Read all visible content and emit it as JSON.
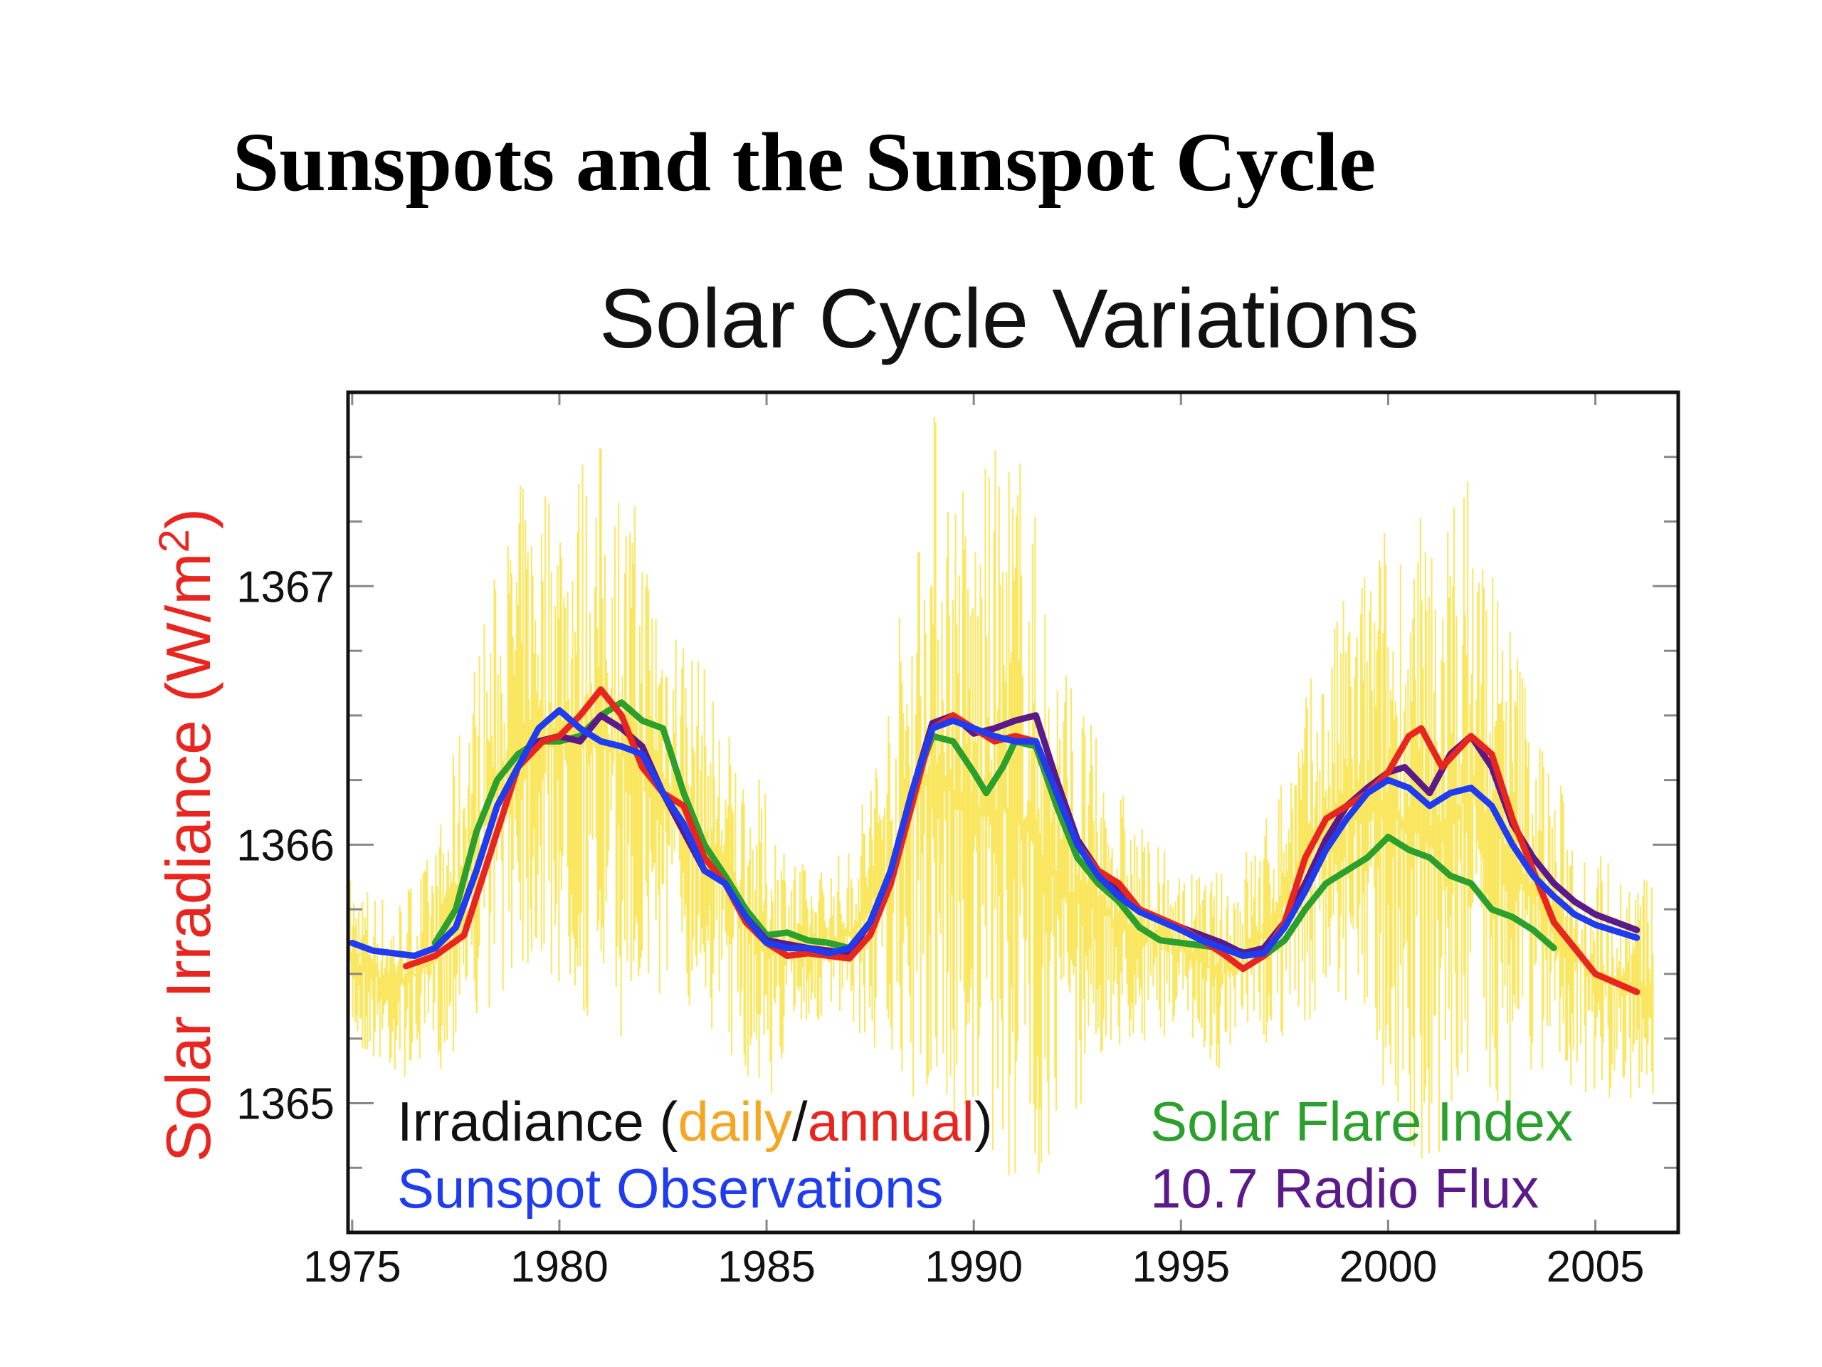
{
  "slide_title": "Sunspots and the Sunspot Cycle",
  "chart_data": {
    "type": "line",
    "title": "Solar Cycle Variations",
    "ylabel": "Solar Irradiance (W/m",
    "ylabel_sup": "2",
    "ylabel_close": ")",
    "xlabel": "",
    "xlim": [
      1974.9,
      2007
    ],
    "ylim": [
      1364.5,
      1367.75
    ],
    "xticks": [
      1975,
      1980,
      1985,
      1990,
      1995,
      2000,
      2005
    ],
    "yticks": [
      1365,
      1366,
      1367
    ],
    "xtick_labels": [
      "1975",
      "1980",
      "1985",
      "1990",
      "1995",
      "2000",
      "2005"
    ],
    "ytick_labels": [
      "1365",
      "1366",
      "1367"
    ],
    "grid": false,
    "legend_placement": "bottom",
    "legend": {
      "irradiance_prefix": "Irradiance (",
      "daily": "daily",
      "slash": "/",
      "annual": "annual",
      "irradiance_suffix": ")",
      "sunspot": "Sunspot Observations",
      "flare": "Solar Flare Index",
      "radio": "10.7 Radio Flux"
    },
    "colors": {
      "daily": "#f8e03a",
      "daily_label": "#f5a623",
      "annual": "#e8261f",
      "sunspot": "#1f3cf0",
      "flare": "#2ca02c",
      "radio": "#5b1a8a",
      "axis": "#111111",
      "tick": "#888888"
    },
    "daily_envelope": [
      [
        1975,
        1365.2,
        1365.9
      ],
      [
        1976,
        1365.1,
        1365.8
      ],
      [
        1977,
        1365.1,
        1366.0
      ],
      [
        1978,
        1365.3,
        1366.8
      ],
      [
        1979,
        1365.5,
        1367.4
      ],
      [
        1980,
        1365.4,
        1367.5
      ],
      [
        1981,
        1365.2,
        1367.6
      ],
      [
        1982,
        1365.3,
        1367.3
      ],
      [
        1983,
        1365.4,
        1366.9
      ],
      [
        1984,
        1365.2,
        1366.5
      ],
      [
        1985,
        1365.0,
        1366.2
      ],
      [
        1986,
        1365.3,
        1365.9
      ],
      [
        1987,
        1365.3,
        1366.0
      ],
      [
        1988,
        1365.1,
        1366.7
      ],
      [
        1989,
        1364.9,
        1367.75
      ],
      [
        1990,
        1364.8,
        1367.4
      ],
      [
        1991,
        1364.6,
        1367.7
      ],
      [
        1992,
        1364.8,
        1366.9
      ],
      [
        1993,
        1365.1,
        1366.4
      ],
      [
        1994,
        1365.2,
        1366.1
      ],
      [
        1995,
        1365.3,
        1365.9
      ],
      [
        1996,
        1365.1,
        1365.9
      ],
      [
        1997,
        1365.2,
        1366.1
      ],
      [
        1998,
        1365.3,
        1366.6
      ],
      [
        1999,
        1365.3,
        1367.0
      ],
      [
        2000,
        1365.0,
        1367.3
      ],
      [
        2001,
        1364.7,
        1367.3
      ],
      [
        2002,
        1364.9,
        1367.5
      ],
      [
        2003,
        1365.0,
        1366.9
      ],
      [
        2004,
        1365.1,
        1366.3
      ],
      [
        2005,
        1365.0,
        1366.0
      ],
      [
        2006,
        1365.0,
        1365.9
      ]
    ],
    "series": [
      {
        "name": "annual",
        "points": [
          [
            1976.3,
            1365.53
          ],
          [
            1977,
            1365.57
          ],
          [
            1977.7,
            1365.65
          ],
          [
            1978.3,
            1365.95
          ],
          [
            1979,
            1366.3
          ],
          [
            1979.6,
            1366.4
          ],
          [
            1980,
            1366.42
          ],
          [
            1980.5,
            1366.5
          ],
          [
            1981,
            1366.6
          ],
          [
            1981.5,
            1366.5
          ],
          [
            1982,
            1366.3
          ],
          [
            1982.5,
            1366.2
          ],
          [
            1983,
            1366.15
          ],
          [
            1983.5,
            1365.95
          ],
          [
            1984,
            1365.85
          ],
          [
            1984.5,
            1365.7
          ],
          [
            1985,
            1365.62
          ],
          [
            1985.5,
            1365.57
          ],
          [
            1986,
            1365.58
          ],
          [
            1986.5,
            1365.57
          ],
          [
            1987,
            1365.56
          ],
          [
            1987.5,
            1365.65
          ],
          [
            1988,
            1365.85
          ],
          [
            1988.5,
            1366.15
          ],
          [
            1989,
            1366.45
          ],
          [
            1989.5,
            1366.5
          ],
          [
            1990,
            1366.45
          ],
          [
            1990.5,
            1366.4
          ],
          [
            1991,
            1366.42
          ],
          [
            1991.5,
            1366.4
          ],
          [
            1992,
            1366.2
          ],
          [
            1992.5,
            1366.0
          ],
          [
            1993,
            1365.9
          ],
          [
            1993.5,
            1365.85
          ],
          [
            1994,
            1365.75
          ],
          [
            1995,
            1365.68
          ],
          [
            1995.5,
            1365.63
          ],
          [
            1996,
            1365.58
          ],
          [
            1996.5,
            1365.52
          ],
          [
            1997,
            1365.57
          ],
          [
            1997.5,
            1365.7
          ],
          [
            1998,
            1365.95
          ],
          [
            1998.5,
            1366.1
          ],
          [
            1999,
            1366.15
          ],
          [
            1999.5,
            1366.2
          ],
          [
            2000,
            1366.28
          ],
          [
            2000.5,
            1366.42
          ],
          [
            2000.8,
            1366.45
          ],
          [
            2001.3,
            1366.3
          ],
          [
            2002,
            1366.42
          ],
          [
            2002.5,
            1366.35
          ],
          [
            2003,
            1366.1
          ],
          [
            2003.5,
            1365.9
          ],
          [
            2004,
            1365.7
          ],
          [
            2004.5,
            1365.6
          ],
          [
            2005,
            1365.5
          ],
          [
            2006,
            1365.43
          ]
        ]
      },
      {
        "name": "Sunspot Observations",
        "points": [
          [
            1975,
            1365.62
          ],
          [
            1975.5,
            1365.59
          ],
          [
            1976,
            1365.58
          ],
          [
            1976.5,
            1365.57
          ],
          [
            1977,
            1365.6
          ],
          [
            1977.5,
            1365.68
          ],
          [
            1978,
            1365.9
          ],
          [
            1978.5,
            1366.15
          ],
          [
            1979,
            1366.3
          ],
          [
            1979.5,
            1366.45
          ],
          [
            1980,
            1366.52
          ],
          [
            1980.5,
            1366.45
          ],
          [
            1981,
            1366.4
          ],
          [
            1981.5,
            1366.38
          ],
          [
            1982,
            1366.35
          ],
          [
            1982.5,
            1366.2
          ],
          [
            1983,
            1366.08
          ],
          [
            1983.5,
            1365.9
          ],
          [
            1984,
            1365.85
          ],
          [
            1984.5,
            1365.72
          ],
          [
            1985,
            1365.62
          ],
          [
            1985.5,
            1365.6
          ],
          [
            1986,
            1365.6
          ],
          [
            1986.5,
            1365.58
          ],
          [
            1987,
            1365.6
          ],
          [
            1987.5,
            1365.7
          ],
          [
            1988,
            1365.9
          ],
          [
            1988.5,
            1366.2
          ],
          [
            1989,
            1366.45
          ],
          [
            1989.5,
            1366.48
          ],
          [
            1990,
            1366.45
          ],
          [
            1990.5,
            1366.42
          ],
          [
            1991,
            1366.4
          ],
          [
            1991.5,
            1366.4
          ],
          [
            1992,
            1366.2
          ],
          [
            1992.5,
            1366.0
          ],
          [
            1993,
            1365.88
          ],
          [
            1993.5,
            1365.8
          ],
          [
            1994,
            1365.74
          ],
          [
            1995,
            1365.67
          ],
          [
            1995.5,
            1365.63
          ],
          [
            1996,
            1365.6
          ],
          [
            1996.5,
            1365.57
          ],
          [
            1997,
            1365.58
          ],
          [
            1997.5,
            1365.68
          ],
          [
            1998,
            1365.82
          ],
          [
            1998.5,
            1365.98
          ],
          [
            1999,
            1366.1
          ],
          [
            1999.5,
            1366.2
          ],
          [
            2000,
            1366.25
          ],
          [
            2000.5,
            1366.22
          ],
          [
            2001,
            1366.15
          ],
          [
            2001.5,
            1366.2
          ],
          [
            2002,
            1366.22
          ],
          [
            2002.5,
            1366.15
          ],
          [
            2003,
            1366.0
          ],
          [
            2003.5,
            1365.88
          ],
          [
            2004,
            1365.8
          ],
          [
            2004.5,
            1365.73
          ],
          [
            2005,
            1365.69
          ],
          [
            2006,
            1365.64
          ]
        ]
      },
      {
        "name": "Solar Flare Index",
        "points": [
          [
            1977,
            1365.62
          ],
          [
            1977.5,
            1365.75
          ],
          [
            1978,
            1366.05
          ],
          [
            1978.5,
            1366.25
          ],
          [
            1979,
            1366.35
          ],
          [
            1979.5,
            1366.4
          ],
          [
            1980,
            1366.4
          ],
          [
            1980.5,
            1366.42
          ],
          [
            1981,
            1366.5
          ],
          [
            1981.5,
            1366.55
          ],
          [
            1982,
            1366.48
          ],
          [
            1982.5,
            1366.45
          ],
          [
            1983,
            1366.2
          ],
          [
            1983.5,
            1366.0
          ],
          [
            1984,
            1365.88
          ],
          [
            1984.5,
            1365.75
          ],
          [
            1985,
            1365.65
          ],
          [
            1985.5,
            1365.66
          ],
          [
            1986,
            1365.63
          ],
          [
            1986.5,
            1365.62
          ],
          [
            1987,
            1365.6
          ],
          [
            1987.5,
            1365.7
          ],
          [
            1988,
            1365.9
          ],
          [
            1988.5,
            1366.2
          ],
          [
            1989,
            1366.42
          ],
          [
            1989.5,
            1366.4
          ],
          [
            1990,
            1366.28
          ],
          [
            1990.3,
            1366.2
          ],
          [
            1990.7,
            1366.3
          ],
          [
            1991,
            1366.4
          ],
          [
            1991.5,
            1366.38
          ],
          [
            1992,
            1366.15
          ],
          [
            1992.5,
            1365.95
          ],
          [
            1993,
            1365.85
          ],
          [
            1993.5,
            1365.78
          ],
          [
            1994,
            1365.68
          ],
          [
            1994.5,
            1365.63
          ],
          [
            1995,
            1365.62
          ],
          [
            1996,
            1365.6
          ],
          [
            1997,
            1365.57
          ],
          [
            1997.5,
            1365.63
          ],
          [
            1998,
            1365.75
          ],
          [
            1998.5,
            1365.85
          ],
          [
            1999,
            1365.9
          ],
          [
            1999.5,
            1365.95
          ],
          [
            2000,
            1366.03
          ],
          [
            2000.5,
            1365.98
          ],
          [
            2001,
            1365.95
          ],
          [
            2001.5,
            1365.88
          ],
          [
            2002,
            1365.85
          ],
          [
            2002.5,
            1365.75
          ],
          [
            2003,
            1365.72
          ],
          [
            2003.5,
            1365.67
          ],
          [
            2004,
            1365.6
          ]
        ]
      },
      {
        "name": "10.7 Radio Flux",
        "points": [
          [
            1977,
            1365.6
          ],
          [
            1977.5,
            1365.68
          ],
          [
            1978,
            1365.9
          ],
          [
            1978.5,
            1366.15
          ],
          [
            1979,
            1366.3
          ],
          [
            1979.5,
            1366.4
          ],
          [
            1980,
            1366.42
          ],
          [
            1980.5,
            1366.4
          ],
          [
            1981,
            1366.5
          ],
          [
            1981.5,
            1366.45
          ],
          [
            1982,
            1366.38
          ],
          [
            1982.5,
            1366.2
          ],
          [
            1983,
            1366.05
          ],
          [
            1983.5,
            1365.9
          ],
          [
            1984,
            1365.85
          ],
          [
            1984.5,
            1365.72
          ],
          [
            1985,
            1365.63
          ],
          [
            1986,
            1365.6
          ],
          [
            1987,
            1365.58
          ],
          [
            1987.5,
            1365.7
          ],
          [
            1988,
            1365.9
          ],
          [
            1988.5,
            1366.2
          ],
          [
            1989,
            1366.47
          ],
          [
            1989.5,
            1366.5
          ],
          [
            1990,
            1366.43
          ],
          [
            1990.5,
            1366.45
          ],
          [
            1991,
            1366.48
          ],
          [
            1991.5,
            1366.5
          ],
          [
            1992,
            1366.25
          ],
          [
            1992.5,
            1366.02
          ],
          [
            1993,
            1365.9
          ],
          [
            1993.5,
            1365.82
          ],
          [
            1994,
            1365.75
          ],
          [
            1995,
            1365.68
          ],
          [
            1996,
            1365.62
          ],
          [
            1996.5,
            1365.58
          ],
          [
            1997,
            1365.6
          ],
          [
            1997.5,
            1365.7
          ],
          [
            1998,
            1365.85
          ],
          [
            1998.5,
            1366.02
          ],
          [
            1999,
            1366.15
          ],
          [
            1999.5,
            1366.22
          ],
          [
            2000,
            1366.28
          ],
          [
            2000.4,
            1366.3
          ],
          [
            2001,
            1366.2
          ],
          [
            2001.5,
            1366.35
          ],
          [
            2002,
            1366.42
          ],
          [
            2002.5,
            1366.3
          ],
          [
            2003,
            1366.08
          ],
          [
            2003.5,
            1365.95
          ],
          [
            2004,
            1365.85
          ],
          [
            2004.5,
            1365.78
          ],
          [
            2005,
            1365.73
          ],
          [
            2006,
            1365.67
          ]
        ]
      }
    ]
  }
}
